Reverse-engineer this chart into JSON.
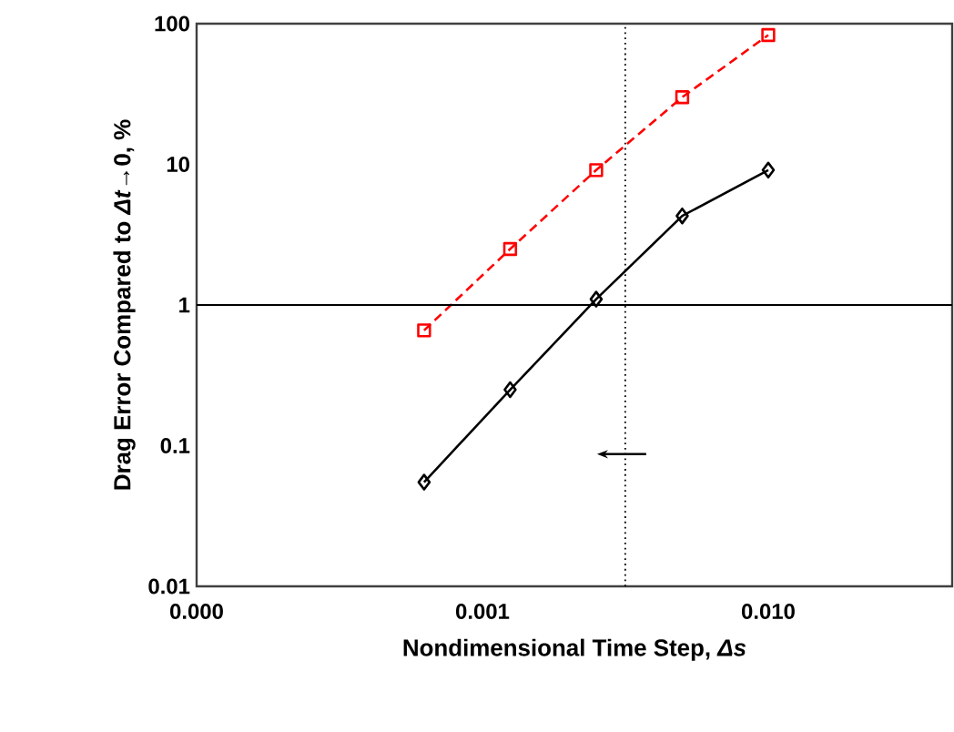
{
  "chart_data": {
    "type": "line",
    "xlabel": "Nondimensional Time Step, *Δs*",
    "ylabel": "Drag Error Compared to *Δt*→0, %",
    "log": "xy",
    "x": [
      0.000625,
      0.00125,
      0.0025,
      0.005,
      0.01
    ],
    "series": [
      {
        "color": "#ff0000",
        "marker": "square",
        "line_style": "dashed",
        "values": [
          0.66,
          2.5,
          9.1,
          30,
          83
        ]
      },
      {
        "color": "#000000",
        "marker": "diamond",
        "line_style": "solid",
        "values": [
          0.055,
          0.25,
          1.1,
          4.3,
          9.1
        ]
      }
    ],
    "xlim": [
      0.0001,
      0.044
    ],
    "ylim": [
      0.01,
      100
    ],
    "xticks": [
      {
        "value": 0.0001,
        "label": "0.000"
      },
      {
        "value": 0.001,
        "label": "0.001"
      },
      {
        "value": 0.01,
        "label": "0.010"
      }
    ],
    "yticks": [
      {
        "value": 0.01,
        "label": "0.01"
      },
      {
        "value": 0.1,
        "label": "0.1"
      },
      {
        "value": 1,
        "label": "1"
      },
      {
        "value": 10,
        "label": "10"
      },
      {
        "value": 100,
        "label": "100"
      }
    ],
    "ref_lines": [
      {
        "axis": "x",
        "value": 0.00316,
        "line_style": "dotted",
        "color": "#000000"
      },
      {
        "axis": "y",
        "value": 1,
        "line_style": "solid",
        "color": "#000000"
      }
    ],
    "grid": false
  }
}
